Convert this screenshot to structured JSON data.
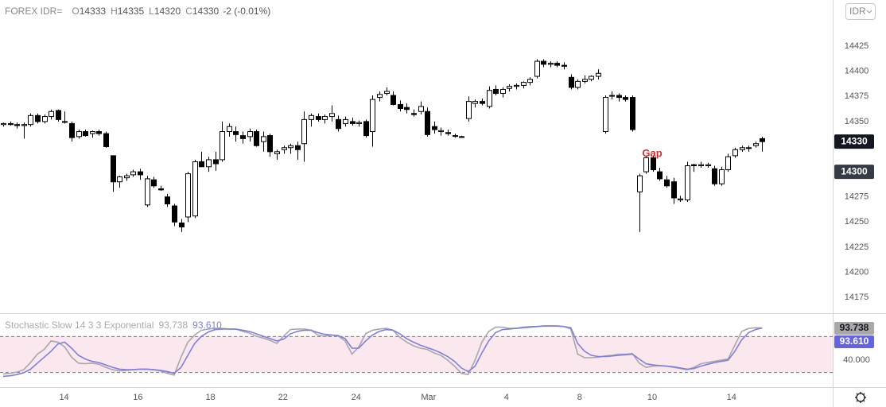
{
  "chart_data": [
    {
      "type": "candlestick",
      "title": "FOREX IDR=",
      "ohlc_letters": [
        "O",
        "H",
        "L",
        "C"
      ],
      "change_label": "-2 (-0.01%)",
      "currency": "IDR",
      "open": [
        14347,
        14348,
        14347,
        14346,
        14347,
        14356,
        14350,
        14355,
        14361,
        14350,
        14348,
        14335,
        14340,
        14338,
        14340,
        14338,
        14316,
        14290,
        14294,
        14297,
        14300,
        14267,
        14292,
        14283,
        14275,
        14266,
        14249,
        14255,
        14256,
        14310,
        14305,
        14312,
        14312,
        14340,
        14340,
        14336,
        14335,
        14340,
        14330,
        14336,
        14318,
        14322,
        14324,
        14326,
        14328,
        14352,
        14355,
        14352,
        14355,
        14352,
        14348,
        14350,
        14348,
        14350,
        14340,
        14374,
        14378,
        14376,
        14367,
        14364,
        14358,
        14360,
        14360,
        14345,
        14340,
        14339,
        14336,
        14335,
        14353,
        14368,
        14370,
        14365,
        14382,
        14378,
        14383,
        14385,
        14386,
        14389,
        14395,
        14410,
        14407,
        14408,
        14406,
        14394,
        14384,
        14390,
        14392,
        14395,
        14340,
        14376,
        14376,
        14374,
        14374,
        14280,
        14300,
        14314,
        14300,
        14292,
        14290,
        14272,
        14272,
        14307,
        14306,
        14306,
        14303,
        14288,
        14302,
        14316,
        14322,
        14324,
        14326,
        14333
      ],
      "high": [
        14349,
        14350,
        14349,
        14349,
        14358,
        14358,
        14357,
        14362,
        14362,
        14360,
        14350,
        14342,
        14342,
        14341,
        14342,
        14340,
        14316,
        14296,
        14298,
        14302,
        14303,
        14296,
        14295,
        14286,
        14278,
        14268,
        14253,
        14300,
        14312,
        14320,
        14315,
        14320,
        14350,
        14348,
        14345,
        14340,
        14343,
        14342,
        14340,
        14338,
        14322,
        14326,
        14328,
        14330,
        14360,
        14358,
        14358,
        14357,
        14366,
        14356,
        14355,
        14354,
        14351,
        14352,
        14376,
        14380,
        14384,
        14380,
        14371,
        14368,
        14362,
        14370,
        14364,
        14350,
        14344,
        14342,
        14338,
        14336,
        14375,
        14372,
        14373,
        14385,
        14386,
        14384,
        14387,
        14388,
        14390,
        14394,
        14412,
        14412,
        14410,
        14410,
        14409,
        14397,
        14392,
        14396,
        14396,
        14402,
        14376,
        14380,
        14378,
        14376,
        14376,
        14298,
        14316,
        14316,
        14304,
        14296,
        14294,
        14276,
        14310,
        14308,
        14310,
        14309,
        14306,
        14305,
        14318,
        14324,
        14326,
        14326,
        14330,
        14335
      ],
      "low": [
        14345,
        14346,
        14343,
        14333,
        14345,
        14348,
        14348,
        14352,
        14350,
        14348,
        14330,
        14333,
        14335,
        14334,
        14336,
        14324,
        14280,
        14284,
        14291,
        14295,
        14292,
        14265,
        14284,
        14281,
        14265,
        14246,
        14240,
        14250,
        14254,
        14305,
        14300,
        14301,
        14310,
        14335,
        14330,
        14328,
        14330,
        14325,
        14320,
        14315,
        14312,
        14318,
        14318,
        14312,
        14310,
        14345,
        14350,
        14348,
        14350,
        14340,
        14345,
        14346,
        14345,
        14334,
        14325,
        14370,
        14376,
        14366,
        14360,
        14358,
        14355,
        14357,
        14335,
        14338,
        14336,
        14336,
        14334,
        14334,
        14350,
        14364,
        14366,
        14363,
        14376,
        14374,
        14380,
        14382,
        14383,
        14386,
        14393,
        14404,
        14404,
        14404,
        14402,
        14382,
        14382,
        14388,
        14390,
        14392,
        14338,
        14372,
        14370,
        14370,
        14340,
        14240,
        14298,
        14300,
        14291,
        14284,
        14268,
        14270,
        14270,
        14300,
        14304,
        14304,
        14286,
        14286,
        14300,
        14314,
        14320,
        14320,
        14324,
        14320
      ],
      "close": [
        14348,
        14347,
        14346,
        14347,
        14356,
        14350,
        14355,
        14360,
        14352,
        14350,
        14334,
        14340,
        14336,
        14340,
        14338,
        14325,
        14290,
        14295,
        14296,
        14300,
        14297,
        14293,
        14286,
        14282,
        14268,
        14250,
        14245,
        14298,
        14310,
        14305,
        14312,
        14308,
        14340,
        14345,
        14337,
        14333,
        14340,
        14326,
        14335,
        14320,
        14320,
        14324,
        14326,
        14322,
        14352,
        14356,
        14352,
        14355,
        14358,
        14343,
        14352,
        14348,
        14349,
        14336,
        14372,
        14377,
        14380,
        14367,
        14363,
        14362,
        14357,
        14365,
        14337,
        14342,
        14341,
        14338,
        14336,
        14335,
        14370,
        14370,
        14368,
        14381,
        14378,
        14382,
        14385,
        14386,
        14389,
        14392,
        14410,
        14407,
        14408,
        14406,
        14405,
        14384,
        14390,
        14392,
        14395,
        14398,
        14374,
        14376,
        14374,
        14372,
        14342,
        14296,
        14314,
        14302,
        14293,
        14286,
        14274,
        14273,
        14306,
        14306,
        14307,
        14307,
        14288,
        14302,
        14315,
        14322,
        14324,
        14324,
        14328,
        14330
      ],
      "xlim": [
        -0.47,
        121.3
      ],
      "xticks": [
        {
          "value": 8.9,
          "label": "14"
        },
        {
          "value": 19.7,
          "label": "16"
        },
        {
          "value": 30.3,
          "label": "18"
        },
        {
          "value": 40.9,
          "label": "22"
        },
        {
          "value": 51.6,
          "label": "24"
        },
        {
          "value": 62.2,
          "label": "Mar"
        },
        {
          "value": 73.6,
          "label": "4"
        },
        {
          "value": 84.3,
          "label": "8"
        },
        {
          "value": 94.9,
          "label": "10"
        },
        {
          "value": 106.5,
          "label": "14"
        }
      ],
      "ylim": [
        14160,
        14471
      ],
      "yticks": [
        14425,
        14400,
        14375,
        14350,
        14275,
        14250,
        14225,
        14200,
        14175
      ],
      "price_labels": [
        {
          "value": 14330,
          "color": "#131722"
        },
        {
          "value": 14300,
          "color": "#363a45"
        }
      ],
      "annotations": [
        {
          "text": "Gap",
          "x": 94.9,
          "y": 14318,
          "color": "#d32f2f"
        }
      ],
      "grid": false
    },
    {
      "type": "line",
      "title": "Stochastic Slow 14 3 3 Exponential",
      "series": [
        {
          "color": "#a8a8a8",
          "values": [
            17,
            18,
            20,
            24,
            36,
            50,
            58,
            72,
            70,
            62,
            45,
            35,
            34,
            35,
            33,
            28,
            24,
            22,
            23,
            24,
            25,
            25,
            24,
            22,
            18,
            15,
            45,
            70,
            82,
            90,
            92,
            93,
            93,
            92,
            92,
            88,
            85,
            80,
            77,
            73,
            68,
            80,
            91,
            92,
            92,
            90,
            82,
            80,
            82,
            80,
            72,
            50,
            62,
            84,
            90,
            92,
            93,
            90,
            78,
            70,
            64,
            60,
            58,
            52,
            48,
            40,
            30,
            18,
            16,
            40,
            70,
            88,
            95,
            95,
            93,
            93,
            95,
            96,
            96,
            97,
            97,
            97,
            96,
            92,
            50,
            44,
            44,
            45,
            47,
            48,
            50,
            50,
            51,
            35,
            28,
            30,
            31,
            30,
            28,
            26,
            24,
            28,
            34,
            36,
            38,
            40,
            42,
            65,
            88,
            93,
            94,
            93.738
          ],
          "last_value_label": "93.738",
          "label_bg": "#a8a8a8",
          "label_fg": "#131722"
        },
        {
          "color": "#7e7ee0",
          "values": [
            13,
            14,
            16,
            19,
            25,
            35,
            45,
            55,
            67,
            70,
            60,
            48,
            42,
            38,
            36,
            32,
            28,
            25,
            24,
            24,
            25,
            25,
            24,
            23,
            21,
            18,
            28,
            48,
            68,
            80,
            87,
            91,
            92,
            92,
            92,
            90,
            88,
            84,
            80,
            76,
            72,
            75,
            84,
            88,
            90,
            90,
            86,
            83,
            82,
            81,
            76,
            60,
            60,
            72,
            82,
            88,
            91,
            90,
            84,
            76,
            70,
            65,
            61,
            57,
            52,
            46,
            38,
            27,
            21,
            30,
            52,
            72,
            86,
            91,
            92,
            93,
            94,
            95,
            96,
            97,
            97,
            97,
            96,
            94,
            68,
            55,
            48,
            46,
            46,
            47,
            48,
            49,
            50,
            42,
            34,
            32,
            31,
            30,
            29,
            27,
            25,
            26,
            30,
            33,
            36,
            38,
            40,
            55,
            74,
            86,
            91,
            93.61
          ],
          "last_value_label": "93.610",
          "label_bg": "#6464e0",
          "label_fg": "#ffffff"
        }
      ],
      "ylim": [
        -5,
        117
      ],
      "yticks": [
        {
          "value": 40,
          "label": "40.000"
        }
      ],
      "bands": [
        80,
        20
      ],
      "band_fill": "#fbe8ee"
    }
  ]
}
